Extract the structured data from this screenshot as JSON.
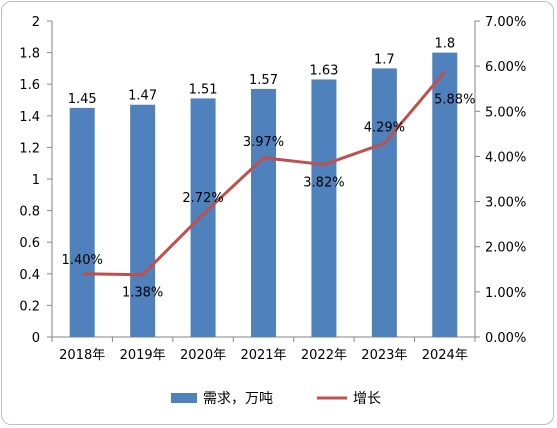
{
  "chart_data": {
    "type": "bar",
    "categories": [
      "2018年",
      "2019年",
      "2020年",
      "2021年",
      "2022年",
      "2023年",
      "2024年"
    ],
    "series": [
      {
        "name": "需求，万吨",
        "type": "bar",
        "axis": "left",
        "color": "#4f81bd",
        "values": [
          1.45,
          1.47,
          1.51,
          1.57,
          1.63,
          1.7,
          1.8
        ],
        "labels": [
          "1.45",
          "1.47",
          "1.51",
          "1.57",
          "1.63",
          "1.7",
          "1.8"
        ]
      },
      {
        "name": "增长",
        "type": "line",
        "axis": "right",
        "color": "#c0504d",
        "values": [
          1.4,
          1.38,
          2.72,
          3.97,
          3.82,
          4.29,
          5.88
        ],
        "labels": [
          "1.40%",
          "1.38%",
          "2.72%",
          "3.97%",
          "3.82%",
          "4.29%",
          "5.88%"
        ]
      }
    ],
    "y_left": {
      "ylim": [
        0,
        2
      ],
      "ticks": [
        "0",
        "0.2",
        "0.4",
        "0.6",
        "0.8",
        "1",
        "1.2",
        "1.4",
        "1.6",
        "1.8",
        "2"
      ]
    },
    "y_right": {
      "ylim": [
        0,
        7
      ],
      "ticks": [
        "0.00%",
        "1.00%",
        "2.00%",
        "3.00%",
        "4.00%",
        "5.00%",
        "6.00%",
        "7.00%"
      ]
    },
    "grid": false,
    "legend": "bottom"
  }
}
